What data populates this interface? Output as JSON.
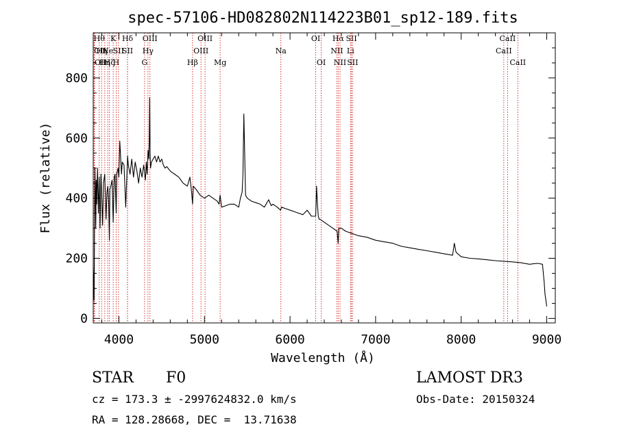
{
  "chart_data": {
    "type": "line",
    "title": "spec-57106-HD082802N114223B01_sp12-189.fits",
    "xlabel": "Wavelength (Å)",
    "ylabel": "Flux (relative)",
    "xlim": [
      3700,
      9100
    ],
    "ylim": [
      -15,
      950
    ],
    "xticks": [
      4000,
      5000,
      6000,
      7000,
      8000,
      9000
    ],
    "yticks": [
      0,
      200,
      400,
      600,
      800
    ],
    "series": [
      {
        "name": "spectrum",
        "color": "#000000",
        "x": [
          3700,
          3710,
          3715,
          3720,
          3725,
          3730,
          3735,
          3740,
          3750,
          3760,
          3770,
          3780,
          3790,
          3800,
          3810,
          3820,
          3835,
          3850,
          3860,
          3870,
          3880,
          3889,
          3895,
          3905,
          3920,
          3933,
          3945,
          3955,
          3968,
          3975,
          3990,
          4000,
          4010,
          4020,
          4030,
          4040,
          4060,
          4080,
          4101,
          4110,
          4130,
          4150,
          4170,
          4190,
          4210,
          4230,
          4250,
          4270,
          4290,
          4310,
          4320,
          4330,
          4340,
          4350,
          4355,
          4360,
          4365,
          4370,
          4380,
          4400,
          4420,
          4440,
          4460,
          4480,
          4500,
          4520,
          4540,
          4560,
          4600,
          4650,
          4700,
          4750,
          4800,
          4830,
          4850,
          4861,
          4870,
          4900,
          4950,
          5000,
          5050,
          5100,
          5150,
          5170,
          5183,
          5200,
          5250,
          5300,
          5350,
          5400,
          5420,
          5440,
          5450,
          5460,
          5480,
          5500,
          5550,
          5600,
          5650,
          5700,
          5750,
          5780,
          5800,
          5850,
          5890,
          5900,
          5950,
          6000,
          6050,
          6100,
          6150,
          6200,
          6250,
          6300,
          6310,
          6320,
          6330,
          6340,
          6350,
          6400,
          6450,
          6500,
          6550,
          6563,
          6570,
          6600,
          6650,
          6700,
          6750,
          6800,
          6900,
          7000,
          7100,
          7200,
          7300,
          7400,
          7500,
          7600,
          7700,
          7800,
          7900,
          7920,
          7940,
          8000,
          8100,
          8200,
          8300,
          8400,
          8500,
          8600,
          8700,
          8800,
          8850,
          8900,
          8950,
          8970,
          8980,
          8990,
          9000
        ],
        "y": [
          170,
          60,
          300,
          500,
          420,
          300,
          460,
          380,
          500,
          350,
          470,
          300,
          480,
          400,
          310,
          450,
          480,
          330,
          420,
          440,
          390,
          260,
          430,
          440,
          460,
          320,
          470,
          480,
          350,
          480,
          500,
          470,
          590,
          540,
          480,
          520,
          510,
          370,
          540,
          510,
          480,
          530,
          470,
          520,
          490,
          450,
          500,
          470,
          510,
          460,
          520,
          480,
          560,
          530,
          600,
          735,
          550,
          500,
          520,
          530,
          540,
          520,
          540,
          520,
          530,
          510,
          500,
          505,
          490,
          480,
          470,
          450,
          440,
          470,
          420,
          380,
          440,
          430,
          410,
          400,
          410,
          400,
          390,
          380,
          410,
          370,
          375,
          380,
          380,
          370,
          400,
          420,
          480,
          680,
          410,
          400,
          390,
          385,
          380,
          370,
          395,
          375,
          380,
          370,
          360,
          370,
          365,
          360,
          355,
          350,
          345,
          360,
          340,
          340,
          440,
          380,
          340,
          330,
          330,
          320,
          310,
          300,
          290,
          250,
          300,
          300,
          290,
          285,
          280,
          275,
          270,
          260,
          255,
          250,
          240,
          235,
          230,
          225,
          220,
          215,
          210,
          250,
          220,
          205,
          200,
          198,
          195,
          192,
          190,
          188,
          185,
          180,
          182,
          183,
          180,
          120,
          80,
          60,
          40
        ]
      }
    ],
    "line_marks": [
      {
        "x": 3710,
        "row": 1,
        "label": "OII",
        "side": "start"
      },
      {
        "x": 3715,
        "row": 2,
        "label": "OII",
        "side": "start"
      },
      {
        "x": 3770,
        "row": 0,
        "label": "Hθ",
        "side": "middle"
      },
      {
        "x": 3798,
        "row": 1,
        "label": "Hη",
        "side": "middle"
      },
      {
        "x": 3835,
        "row": 2,
        "label": "Hη",
        "side": "middle"
      },
      {
        "x": 3869,
        "row": 1,
        "label": "Ne",
        "side": "middle"
      },
      {
        "x": 3889,
        "row": 2,
        "label": "Hζ",
        "side": "middle"
      },
      {
        "x": 3933,
        "row": 0,
        "label": "K",
        "side": "middle"
      },
      {
        "x": 3968,
        "row": 2,
        "label": "H",
        "side": "middle"
      },
      {
        "x": 3995,
        "row": 1,
        "label": "SII",
        "side": "middle"
      },
      {
        "x": 4101,
        "row": 0,
        "label": "Hδ",
        "side": "middle"
      },
      {
        "x": 4101,
        "row": 1,
        "label": "SII",
        "side": "middle"
      },
      {
        "x": 4300,
        "row": 2,
        "label": "G",
        "side": "middle"
      },
      {
        "x": 4340,
        "row": 1,
        "label": "Hγ",
        "side": "middle"
      },
      {
        "x": 4363,
        "row": 0,
        "label": "OIII",
        "side": "middle"
      },
      {
        "x": 4861,
        "row": 2,
        "label": "Hβ",
        "side": "middle"
      },
      {
        "x": 4959,
        "row": 1,
        "label": "OIII",
        "side": "middle"
      },
      {
        "x": 5007,
        "row": 0,
        "label": "OIII",
        "side": "middle"
      },
      {
        "x": 5183,
        "row": 2,
        "label": "Mg",
        "side": "middle"
      },
      {
        "x": 5893,
        "row": 1,
        "label": "Na",
        "side": "middle"
      },
      {
        "x": 6300,
        "row": 0,
        "label": "OI",
        "side": "middle"
      },
      {
        "x": 6364,
        "row": 2,
        "label": "OI",
        "side": "middle"
      },
      {
        "x": 6548,
        "row": 1,
        "label": "NII",
        "side": "middle"
      },
      {
        "x": 6563,
        "row": 0,
        "label": "Hα",
        "side": "middle"
      },
      {
        "x": 6584,
        "row": 2,
        "label": "NII",
        "side": "middle"
      },
      {
        "x": 6707,
        "row": 1,
        "label": "Li",
        "side": "middle"
      },
      {
        "x": 6717,
        "row": 0,
        "label": "SII",
        "side": "middle"
      },
      {
        "x": 6731,
        "row": 2,
        "label": "SII",
        "side": "middle"
      },
      {
        "x": 8498,
        "row": 1,
        "label": "CaII",
        "side": "middle"
      },
      {
        "x": 8542,
        "row": 0,
        "label": "CaII",
        "side": "middle"
      },
      {
        "x": 8662,
        "row": 2,
        "label": "CaII",
        "side": "middle"
      }
    ]
  },
  "info": {
    "object_class": "STAR",
    "subclass": "F0",
    "survey": "LAMOST DR3",
    "redshift": "cz = 173.3 ± -2997624832.0 km/s",
    "obs_date": "Obs-Date: 20150324",
    "coords": "RA = 128.28668, DEC =  13.71638"
  },
  "colors": {
    "axis": "#000000",
    "trace": "#000000",
    "line_marker": "#cc0000"
  }
}
